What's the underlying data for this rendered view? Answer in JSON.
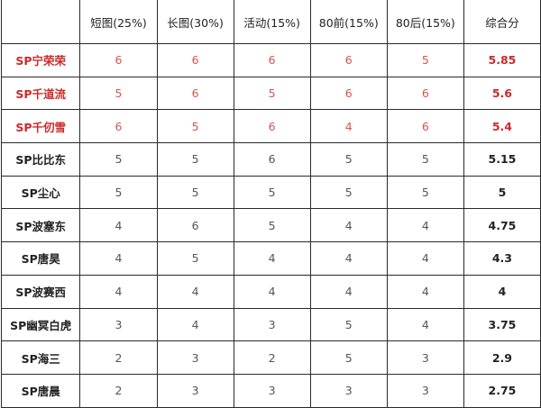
{
  "headers": [
    "",
    "短图(25%)",
    "长图(30%)",
    "活动(15%)",
    "80前(15%)",
    "80后(15%)",
    "综合分"
  ],
  "highlight_color": "#cc2a2a",
  "rows": [
    {
      "name": "SP宁荣荣",
      "scores": [
        "6",
        "6",
        "6",
        "6",
        "5"
      ],
      "total": "5.85",
      "highlight": true
    },
    {
      "name": "SP千道流",
      "scores": [
        "5",
        "6",
        "5",
        "6",
        "6"
      ],
      "total": "5.6",
      "highlight": true
    },
    {
      "name": "SP千仞雪",
      "scores": [
        "6",
        "5",
        "6",
        "4",
        "6"
      ],
      "total": "5.4",
      "highlight": true
    },
    {
      "name": "SP比比东",
      "scores": [
        "5",
        "5",
        "6",
        "5",
        "5"
      ],
      "total": "5.15",
      "highlight": false
    },
    {
      "name": "SP尘心",
      "scores": [
        "5",
        "5",
        "5",
        "5",
        "5"
      ],
      "total": "5",
      "highlight": false
    },
    {
      "name": "SP波塞东",
      "scores": [
        "4",
        "6",
        "5",
        "4",
        "4"
      ],
      "total": "4.75",
      "highlight": false
    },
    {
      "name": "SP唐昊",
      "scores": [
        "4",
        "5",
        "4",
        "4",
        "4"
      ],
      "total": "4.3",
      "highlight": false
    },
    {
      "name": "SP波赛西",
      "scores": [
        "4",
        "4",
        "4",
        "4",
        "4"
      ],
      "total": "4",
      "highlight": false
    },
    {
      "name": "SP幽冥白虎",
      "scores": [
        "3",
        "4",
        "3",
        "5",
        "4"
      ],
      "total": "3.75",
      "highlight": false
    },
    {
      "name": "SP海三",
      "scores": [
        "2",
        "3",
        "2",
        "5",
        "3"
      ],
      "total": "2.9",
      "highlight": false
    },
    {
      "name": "SP唐晨",
      "scores": [
        "2",
        "3",
        "3",
        "3",
        "3"
      ],
      "total": "2.75",
      "highlight": false
    }
  ]
}
